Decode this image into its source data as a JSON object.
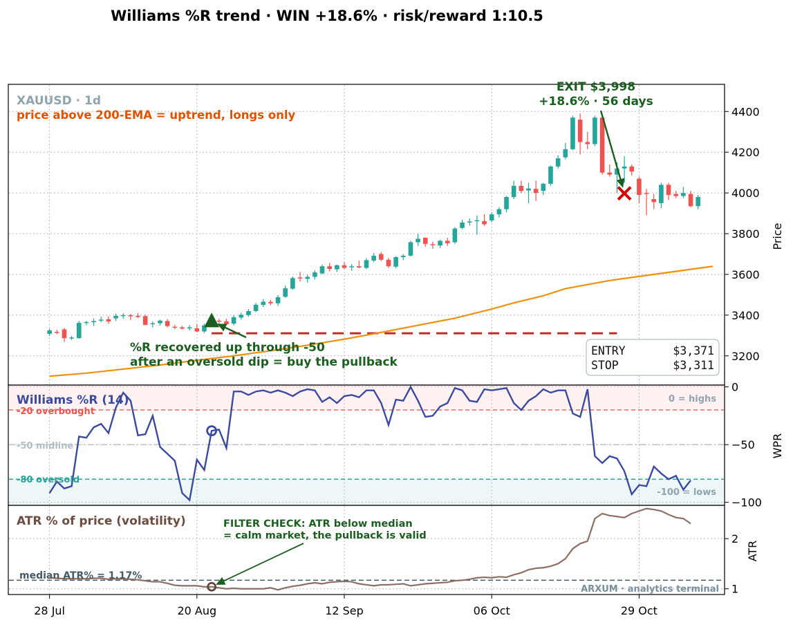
{
  "title": "Williams %R trend  ·  WIN +18.6%  ·  risk/reward 1:10.5",
  "colors": {
    "up": "#26a69a",
    "down": "#ef5350",
    "ema": "#f0900a",
    "wpr": "#3a4a9f",
    "atr": "#8d6e63",
    "win": "#1b5e20",
    "stop": "#c62828",
    "orange_text": "#e65100",
    "gray_text": "#90a4ae",
    "exit_marker": "#d50000"
  },
  "price_panel": {
    "symbol": "XAUUSD · 1d",
    "subtitle": "price above 200-EMA = uptrend, longs only",
    "ylabel": "Price",
    "exit_line1": "EXIT $3,998",
    "exit_line2": "+18.6%  ·  56 days",
    "entry_note_line1": "%R recovered up through -50",
    "entry_note_line2": "after an oversold dip = buy the pullback",
    "entry_label": "ENTRY",
    "entry_value": "$3,371",
    "stop_label": "STOP",
    "stop_value": "$3,311"
  },
  "wpr_panel": {
    "title": "Williams %R (14)",
    "ylabel": "WPR",
    "label_highs": "0 = highs",
    "label_lows": "-100 = lows",
    "label_overbought": "-20  overbought",
    "label_midline": "-50  midline",
    "label_oversold": "-80  oversold"
  },
  "atr_panel": {
    "title": "ATR % of price (volatility)",
    "ylabel": "ATR",
    "filter_line1": "FILTER CHECK: ATR below median",
    "filter_line2": "= calm market, the pullback is valid",
    "median_label": "median ATR% = 1.17%",
    "watermark": "ARXUM · analytics terminal"
  },
  "chart_data": [
    {
      "type": "candlestick",
      "x_range": [
        -5.5,
        91.5
      ],
      "ylim": [
        3060,
        4530
      ],
      "y_ticks": [
        3200,
        3400,
        3600,
        3800,
        4000,
        4200,
        4400
      ],
      "x_ticks": [
        {
          "x": 0,
          "label": "28 Jul"
        },
        {
          "x": 20,
          "label": "20 Aug"
        },
        {
          "x": 40,
          "label": "12 Sep"
        },
        {
          "x": 60,
          "label": "06 Oct"
        },
        {
          "x": 80,
          "label": "29 Oct"
        }
      ],
      "grid": true,
      "candles": [
        [
          3308,
          3333,
          3298,
          3325
        ],
        [
          3318,
          3328,
          3306,
          3313
        ],
        [
          3330,
          3337,
          3268,
          3287
        ],
        [
          3287,
          3298,
          3278,
          3290
        ],
        [
          3287,
          3372,
          3284,
          3362
        ],
        [
          3362,
          3372,
          3350,
          3366
        ],
        [
          3365,
          3384,
          3347,
          3371
        ],
        [
          3373,
          3392,
          3365,
          3378
        ],
        [
          3380,
          3395,
          3357,
          3369
        ],
        [
          3384,
          3407,
          3371,
          3396
        ],
        [
          3398,
          3409,
          3382,
          3400
        ],
        [
          3400,
          3406,
          3376,
          3394
        ],
        [
          3397,
          3410,
          3385,
          3391
        ],
        [
          3395,
          3403,
          3350,
          3352
        ],
        [
          3355,
          3368,
          3340,
          3360
        ],
        [
          3360,
          3378,
          3349,
          3373
        ],
        [
          3371,
          3381,
          3340,
          3346
        ],
        [
          3343,
          3352,
          3332,
          3340
        ],
        [
          3340,
          3348,
          3329,
          3334
        ],
        [
          3335,
          3351,
          3325,
          3340
        ],
        [
          3335,
          3356,
          3315,
          3320
        ],
        [
          3320,
          3358,
          3312,
          3350
        ],
        [
          3350,
          3385,
          3340,
          3373
        ],
        [
          3373,
          3381,
          3355,
          3372
        ],
        [
          3370,
          3382,
          3351,
          3355
        ],
        [
          3358,
          3400,
          3350,
          3390
        ],
        [
          3388,
          3412,
          3378,
          3402
        ],
        [
          3400,
          3430,
          3392,
          3420
        ],
        [
          3420,
          3460,
          3415,
          3451
        ],
        [
          3450,
          3478,
          3440,
          3466
        ],
        [
          3465,
          3475,
          3448,
          3458
        ],
        [
          3458,
          3498,
          3445,
          3488
        ],
        [
          3490,
          3545,
          3485,
          3532
        ],
        [
          3530,
          3590,
          3525,
          3582
        ],
        [
          3585,
          3612,
          3565,
          3580
        ],
        [
          3578,
          3598,
          3560,
          3588
        ],
        [
          3588,
          3620,
          3575,
          3610
        ],
        [
          3605,
          3648,
          3600,
          3640
        ],
        [
          3640,
          3656,
          3615,
          3627
        ],
        [
          3625,
          3648,
          3612,
          3645
        ],
        [
          3645,
          3660,
          3626,
          3632
        ],
        [
          3635,
          3650,
          3618,
          3640
        ],
        [
          3640,
          3668,
          3630,
          3634
        ],
        [
          3632,
          3680,
          3626,
          3670
        ],
        [
          3668,
          3705,
          3660,
          3692
        ],
        [
          3700,
          3710,
          3665,
          3672
        ],
        [
          3672,
          3680,
          3632,
          3640
        ],
        [
          3638,
          3690,
          3630,
          3685
        ],
        [
          3685,
          3700,
          3670,
          3692
        ],
        [
          3692,
          3765,
          3688,
          3758
        ],
        [
          3758,
          3800,
          3740,
          3775
        ],
        [
          3780,
          3782,
          3736,
          3750
        ],
        [
          3748,
          3760,
          3725,
          3745
        ],
        [
          3742,
          3770,
          3730,
          3765
        ],
        [
          3765,
          3780,
          3740,
          3753
        ],
        [
          3758,
          3832,
          3750,
          3825
        ],
        [
          3828,
          3868,
          3822,
          3855
        ],
        [
          3858,
          3875,
          3840,
          3860
        ],
        [
          3865,
          3890,
          3795,
          3866
        ],
        [
          3862,
          3895,
          3838,
          3846
        ],
        [
          3865,
          3905,
          3855,
          3895
        ],
        [
          3895,
          3930,
          3880,
          3920
        ],
        [
          3920,
          3985,
          3905,
          3980
        ],
        [
          3980,
          4060,
          3970,
          4035
        ],
        [
          4035,
          4060,
          4000,
          4010
        ],
        [
          4012,
          4050,
          3950,
          4022
        ],
        [
          4020,
          4060,
          3960,
          4000
        ],
        [
          4010,
          4050,
          3990,
          4045
        ],
        [
          4045,
          4135,
          4035,
          4130
        ],
        [
          4130,
          4185,
          4120,
          4170
        ],
        [
          4175,
          4245,
          4165,
          4215
        ],
        [
          4215,
          4380,
          4210,
          4370
        ],
        [
          4360,
          4390,
          4190,
          4250
        ],
        [
          4250,
          4300,
          4215,
          4240
        ],
        [
          4240,
          4380,
          4230,
          4370
        ],
        [
          4370,
          4380,
          4090,
          4100
        ],
        [
          4100,
          4140,
          4080,
          4090
        ],
        [
          4090,
          4150,
          4000,
          4120
        ],
        [
          4120,
          4180,
          4050,
          4130
        ],
        [
          4130,
          4140,
          4085,
          4105
        ],
        [
          4070,
          4080,
          3950,
          3990
        ],
        [
          4000,
          4020,
          3890,
          3995
        ],
        [
          3970,
          3995,
          3920,
          3955
        ],
        [
          3950,
          4050,
          3925,
          4040
        ],
        [
          4040,
          4050,
          3965,
          3990
        ],
        [
          3995,
          4010,
          3975,
          3985
        ],
        [
          3985,
          4030,
          3975,
          4000
        ],
        [
          3995,
          4010,
          3930,
          3935
        ],
        [
          3935,
          3990,
          3920,
          3980
        ]
      ],
      "ema_200": [
        [
          0,
          3100
        ],
        [
          5,
          3115
        ],
        [
          10,
          3135
        ],
        [
          15,
          3155
        ],
        [
          20,
          3178
        ],
        [
          25,
          3200
        ],
        [
          30,
          3225
        ],
        [
          35,
          3252
        ],
        [
          40,
          3282
        ],
        [
          45,
          3315
        ],
        [
          50,
          3350
        ],
        [
          55,
          3385
        ],
        [
          60,
          3430
        ],
        [
          63,
          3460
        ],
        [
          67,
          3495
        ],
        [
          70,
          3530
        ],
        [
          73,
          3550
        ],
        [
          76,
          3570
        ],
        [
          80,
          3590
        ],
        [
          84,
          3610
        ],
        [
          88,
          3630
        ],
        [
          90,
          3640
        ]
      ],
      "entry": {
        "x": 22,
        "price": 3371
      },
      "stop": {
        "x_from": 22,
        "x_to": 77,
        "price": 3311
      },
      "exit": {
        "x": 78,
        "price": 3998
      }
    },
    {
      "type": "line",
      "name": "Williams %R (14)",
      "ylim": [
        -102,
        1
      ],
      "y_ticks": [
        0,
        -50,
        -100
      ],
      "levels": {
        "overbought": -20,
        "midline": -50,
        "oversold": -80
      },
      "values": [
        -92,
        -82,
        -88,
        -86,
        -43,
        -44,
        -35,
        -32,
        -40,
        -18,
        -5,
        -12,
        -42,
        -41,
        -25,
        -52,
        -58,
        -64,
        -92,
        -98,
        -63,
        -72,
        -38,
        -37,
        -53,
        -4,
        -4,
        -7,
        -4,
        -3,
        -5,
        -3,
        -5,
        -8,
        -4,
        -2,
        -3,
        -13,
        -9,
        -14,
        -8,
        -7,
        -9,
        -3,
        -3,
        -14,
        -33,
        -11,
        -12,
        0,
        -12,
        -26,
        -25,
        -17,
        -14,
        -1,
        -3,
        -12,
        -13,
        -2,
        -3,
        -2,
        -1,
        -14,
        -20,
        -12,
        -8,
        -2,
        -5,
        -3,
        -3,
        -23,
        -26,
        -2,
        -60,
        -66,
        -60,
        -62,
        -73,
        -93,
        -85,
        -86,
        -69,
        -75,
        -80,
        -77,
        -89,
        -81
      ],
      "signal_x": 22
    },
    {
      "type": "line",
      "name": "ATR % of price",
      "ylim": [
        0.9,
        2.65
      ],
      "y_ticks": [
        1,
        2
      ],
      "median": 1.17,
      "values": [
        1.22,
        1.21,
        1.2,
        1.2,
        1.2,
        1.2,
        1.21,
        1.21,
        1.19,
        1.2,
        1.2,
        1.19,
        1.18,
        1.16,
        1.14,
        1.14,
        1.11,
        1.07,
        1.06,
        1.06,
        1.06,
        1.04,
        1.04,
        1.02,
        1.0,
        1.01,
        1.0,
        1.0,
        1.0,
        1.0,
        1.02,
        0.98,
        1.02,
        1.05,
        1.07,
        1.1,
        1.12,
        1.1,
        1.13,
        1.14,
        1.15,
        1.14,
        1.1,
        1.08,
        1.06,
        1.08,
        1.08,
        1.09,
        1.1,
        1.06,
        1.08,
        1.1,
        1.11,
        1.12,
        1.13,
        1.16,
        1.17,
        1.19,
        1.22,
        1.23,
        1.22,
        1.24,
        1.23,
        1.28,
        1.32,
        1.38,
        1.41,
        1.42,
        1.45,
        1.5,
        1.6,
        1.8,
        1.9,
        1.95,
        2.4,
        2.5,
        2.46,
        2.44,
        2.42,
        2.5,
        2.55,
        2.6,
        2.58,
        2.55,
        2.48,
        2.42,
        2.4,
        2.3
      ],
      "filter_x": 22
    }
  ]
}
